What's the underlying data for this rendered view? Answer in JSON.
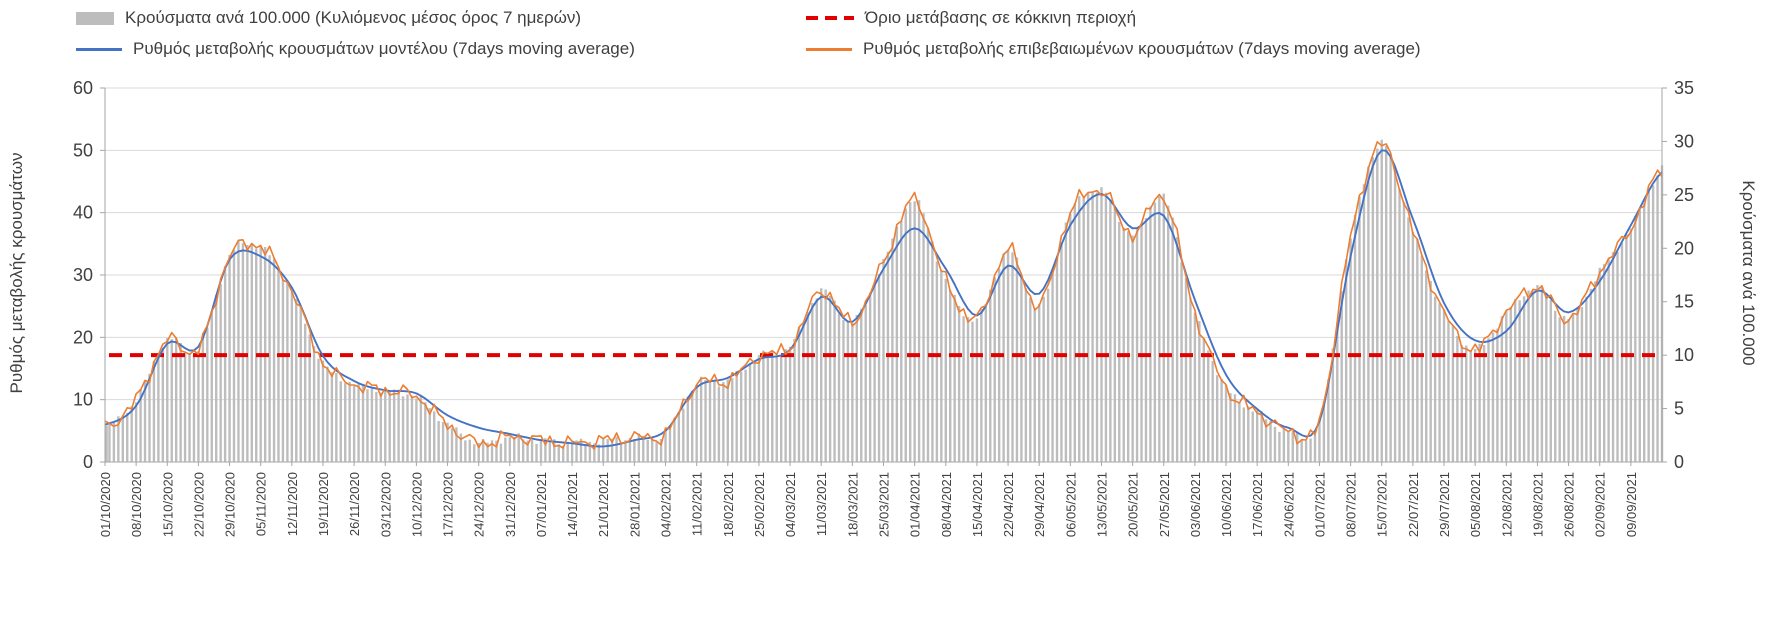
{
  "legend": {
    "bars": "Κρούσματα ανά 100.000 (Κυλιόμενος μέσος όρος 7 ημερών)",
    "threshold": "Όριο μετάβασης σε κόκκινη περιοχή",
    "model": "Ρυθμός μεταβολής κρουσμάτων μοντέλου (7days moving average)",
    "confirmed": "Ρυθμός μεταβολής επιβεβαιωμένων κρουσμάτων (7days moving average)"
  },
  "axes": {
    "left_title": "Ρυθμός μεταβολής κρουσμάτων",
    "right_title": "Κρούσματα ανά 100.000",
    "left_ticks": [
      0,
      10,
      20,
      30,
      40,
      50,
      60
    ],
    "right_ticks": [
      0,
      5,
      10,
      15,
      20,
      25,
      30,
      35
    ]
  },
  "colors": {
    "bar": "#bdbdbd",
    "model": "#4472c4",
    "confirmed": "#ed7d31",
    "threshold": "#e00000",
    "grid": "#d9d9d9",
    "axis": "#a6a6a6",
    "text": "#404040"
  },
  "chart_data": {
    "type": "combo bar + line",
    "title": "",
    "xlabel": "",
    "left_ylabel": "Ρυθμός μεταβολής κρουσμάτων",
    "right_ylabel": "Κρούσματα ανά 100.000",
    "left_ylim": [
      0,
      60
    ],
    "right_ylim": [
      0,
      35
    ],
    "grid": "horizontal",
    "legend_position": "top",
    "sampling_note": "values are weekly estimates read at each tick date; one extra final point where the series meets the right plot edge (a few days past the last tick)",
    "categories": [
      "01/10/2020",
      "08/10/2020",
      "15/10/2020",
      "22/10/2020",
      "29/10/2020",
      "05/11/2020",
      "12/11/2020",
      "19/11/2020",
      "26/11/2020",
      "03/12/2020",
      "10/12/2020",
      "17/12/2020",
      "24/12/2020",
      "31/12/2020",
      "07/01/2021",
      "14/01/2021",
      "21/01/2021",
      "28/01/2021",
      "04/02/2021",
      "11/02/2021",
      "18/02/2021",
      "25/02/2021",
      "04/03/2021",
      "11/03/2021",
      "18/03/2021",
      "25/03/2021",
      "01/04/2021",
      "08/04/2021",
      "15/04/2021",
      "22/04/2021",
      "29/04/2021",
      "06/05/2021",
      "13/05/2021",
      "20/05/2021",
      "27/05/2021",
      "03/06/2021",
      "10/06/2021",
      "17/06/2021",
      "24/06/2021",
      "01/07/2021",
      "08/07/2021",
      "15/07/2021",
      "22/07/2021",
      "29/07/2021",
      "05/08/2021",
      "12/08/2021",
      "19/08/2021",
      "26/08/2021",
      "02/09/2021",
      "09/09/2021"
    ],
    "series": [
      {
        "name": "Κρούσματα ανά 100.000 (Κυλιόμενος μέσος όρος 7 ημερών)",
        "type": "bar",
        "axis": "right",
        "color": "#bdbdbd",
        "values": [
          3.2,
          5.8,
          11.4,
          10.5,
          19.3,
          20.1,
          16,
          9.3,
          7.3,
          6.7,
          6.1,
          3.5,
          1.8,
          2.3,
          2,
          1.8,
          2,
          2.3,
          2.6,
          7.3,
          7.6,
          9.9,
          10.8,
          16,
          13.1,
          18.7,
          24.5,
          16.9,
          13.4,
          19.8,
          14.6,
          23.3,
          25.4,
          21.3,
          24.8,
          14,
          7,
          4.7,
          2.9,
          3.8,
          21,
          29.8,
          21.6,
          14,
          10.5,
          14,
          16.3,
          13.4,
          17.8,
          21.9,
          27.4
        ]
      },
      {
        "name": "Ρυθμός μεταβολής κρουσμάτων μοντέλου (7days moving average)",
        "type": "line",
        "axis": "left",
        "color": "#4472c4",
        "values": [
          6,
          9,
          19,
          18.5,
          32.5,
          33,
          28,
          17,
          13,
          11.5,
          11,
          7.5,
          5.5,
          4.5,
          3.5,
          3,
          2.5,
          3.5,
          5,
          12,
          13.5,
          16.5,
          18,
          26.5,
          22.5,
          31,
          37.5,
          31,
          23.5,
          31.5,
          27,
          38,
          43,
          37.5,
          39.5,
          26,
          14,
          8.5,
          5.5,
          6.5,
          33,
          50,
          39,
          25.5,
          19.5,
          21,
          27.5,
          24,
          29,
          38,
          46.5
        ]
      },
      {
        "name": "Ρυθμός μεταβολής επιβεβαιωμένων κρουσμάτων (7days moving average)",
        "type": "line",
        "axis": "left",
        "color": "#ed7d31",
        "values": [
          5.5,
          10,
          19.5,
          18,
          33,
          34.5,
          27.5,
          16,
          12.5,
          11.5,
          10.5,
          6,
          3,
          4,
          3.5,
          3,
          3.5,
          4,
          4.5,
          12.5,
          13,
          17,
          18.5,
          27.5,
          22.5,
          32,
          42,
          29,
          23,
          34,
          25,
          40,
          43.5,
          36.5,
          42.5,
          24,
          12,
          8,
          5,
          6.5,
          36,
          51,
          37,
          24,
          18,
          24,
          28,
          23,
          30.5,
          37.5,
          47
        ]
      },
      {
        "name": "Όριο μετάβασης σε κόκκινη περιοχή",
        "type": "threshold",
        "axis": "right",
        "color": "#e00000",
        "value": 10
      }
    ]
  }
}
